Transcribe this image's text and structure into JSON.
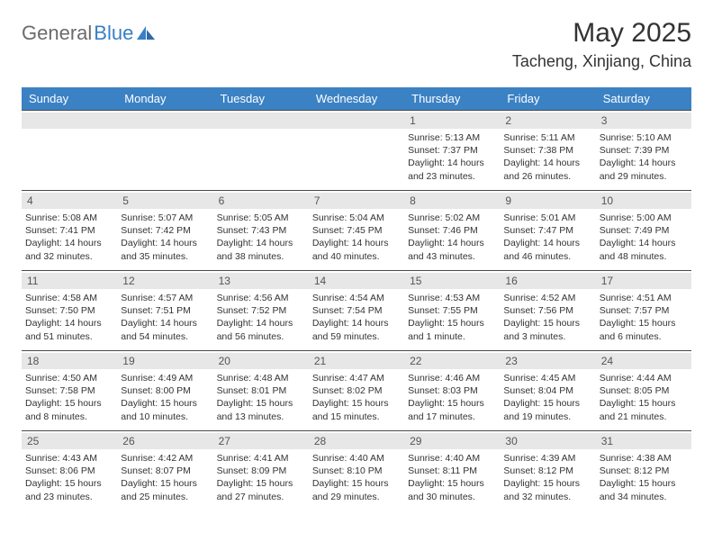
{
  "logo": {
    "word1": "General",
    "word2": "Blue"
  },
  "title": "May 2025",
  "location": "Tacheng, Xinjiang, China",
  "colors": {
    "header_bg": "#3b82c4",
    "header_fg": "#ffffff",
    "daynum_bg": "#e7e7e7",
    "rule": "#4a4a4a",
    "logo_gray": "#6b6b6b",
    "logo_blue": "#3b7fc4"
  },
  "day_headers": [
    "Sunday",
    "Monday",
    "Tuesday",
    "Wednesday",
    "Thursday",
    "Friday",
    "Saturday"
  ],
  "weeks": [
    [
      null,
      null,
      null,
      null,
      {
        "n": "1",
        "sr": "Sunrise: 5:13 AM",
        "ss": "Sunset: 7:37 PM",
        "dl1": "Daylight: 14 hours",
        "dl2": "and 23 minutes."
      },
      {
        "n": "2",
        "sr": "Sunrise: 5:11 AM",
        "ss": "Sunset: 7:38 PM",
        "dl1": "Daylight: 14 hours",
        "dl2": "and 26 minutes."
      },
      {
        "n": "3",
        "sr": "Sunrise: 5:10 AM",
        "ss": "Sunset: 7:39 PM",
        "dl1": "Daylight: 14 hours",
        "dl2": "and 29 minutes."
      }
    ],
    [
      {
        "n": "4",
        "sr": "Sunrise: 5:08 AM",
        "ss": "Sunset: 7:41 PM",
        "dl1": "Daylight: 14 hours",
        "dl2": "and 32 minutes."
      },
      {
        "n": "5",
        "sr": "Sunrise: 5:07 AM",
        "ss": "Sunset: 7:42 PM",
        "dl1": "Daylight: 14 hours",
        "dl2": "and 35 minutes."
      },
      {
        "n": "6",
        "sr": "Sunrise: 5:05 AM",
        "ss": "Sunset: 7:43 PM",
        "dl1": "Daylight: 14 hours",
        "dl2": "and 38 minutes."
      },
      {
        "n": "7",
        "sr": "Sunrise: 5:04 AM",
        "ss": "Sunset: 7:45 PM",
        "dl1": "Daylight: 14 hours",
        "dl2": "and 40 minutes."
      },
      {
        "n": "8",
        "sr": "Sunrise: 5:02 AM",
        "ss": "Sunset: 7:46 PM",
        "dl1": "Daylight: 14 hours",
        "dl2": "and 43 minutes."
      },
      {
        "n": "9",
        "sr": "Sunrise: 5:01 AM",
        "ss": "Sunset: 7:47 PM",
        "dl1": "Daylight: 14 hours",
        "dl2": "and 46 minutes."
      },
      {
        "n": "10",
        "sr": "Sunrise: 5:00 AM",
        "ss": "Sunset: 7:49 PM",
        "dl1": "Daylight: 14 hours",
        "dl2": "and 48 minutes."
      }
    ],
    [
      {
        "n": "11",
        "sr": "Sunrise: 4:58 AM",
        "ss": "Sunset: 7:50 PM",
        "dl1": "Daylight: 14 hours",
        "dl2": "and 51 minutes."
      },
      {
        "n": "12",
        "sr": "Sunrise: 4:57 AM",
        "ss": "Sunset: 7:51 PM",
        "dl1": "Daylight: 14 hours",
        "dl2": "and 54 minutes."
      },
      {
        "n": "13",
        "sr": "Sunrise: 4:56 AM",
        "ss": "Sunset: 7:52 PM",
        "dl1": "Daylight: 14 hours",
        "dl2": "and 56 minutes."
      },
      {
        "n": "14",
        "sr": "Sunrise: 4:54 AM",
        "ss": "Sunset: 7:54 PM",
        "dl1": "Daylight: 14 hours",
        "dl2": "and 59 minutes."
      },
      {
        "n": "15",
        "sr": "Sunrise: 4:53 AM",
        "ss": "Sunset: 7:55 PM",
        "dl1": "Daylight: 15 hours",
        "dl2": "and 1 minute."
      },
      {
        "n": "16",
        "sr": "Sunrise: 4:52 AM",
        "ss": "Sunset: 7:56 PM",
        "dl1": "Daylight: 15 hours",
        "dl2": "and 3 minutes."
      },
      {
        "n": "17",
        "sr": "Sunrise: 4:51 AM",
        "ss": "Sunset: 7:57 PM",
        "dl1": "Daylight: 15 hours",
        "dl2": "and 6 minutes."
      }
    ],
    [
      {
        "n": "18",
        "sr": "Sunrise: 4:50 AM",
        "ss": "Sunset: 7:58 PM",
        "dl1": "Daylight: 15 hours",
        "dl2": "and 8 minutes."
      },
      {
        "n": "19",
        "sr": "Sunrise: 4:49 AM",
        "ss": "Sunset: 8:00 PM",
        "dl1": "Daylight: 15 hours",
        "dl2": "and 10 minutes."
      },
      {
        "n": "20",
        "sr": "Sunrise: 4:48 AM",
        "ss": "Sunset: 8:01 PM",
        "dl1": "Daylight: 15 hours",
        "dl2": "and 13 minutes."
      },
      {
        "n": "21",
        "sr": "Sunrise: 4:47 AM",
        "ss": "Sunset: 8:02 PM",
        "dl1": "Daylight: 15 hours",
        "dl2": "and 15 minutes."
      },
      {
        "n": "22",
        "sr": "Sunrise: 4:46 AM",
        "ss": "Sunset: 8:03 PM",
        "dl1": "Daylight: 15 hours",
        "dl2": "and 17 minutes."
      },
      {
        "n": "23",
        "sr": "Sunrise: 4:45 AM",
        "ss": "Sunset: 8:04 PM",
        "dl1": "Daylight: 15 hours",
        "dl2": "and 19 minutes."
      },
      {
        "n": "24",
        "sr": "Sunrise: 4:44 AM",
        "ss": "Sunset: 8:05 PM",
        "dl1": "Daylight: 15 hours",
        "dl2": "and 21 minutes."
      }
    ],
    [
      {
        "n": "25",
        "sr": "Sunrise: 4:43 AM",
        "ss": "Sunset: 8:06 PM",
        "dl1": "Daylight: 15 hours",
        "dl2": "and 23 minutes."
      },
      {
        "n": "26",
        "sr": "Sunrise: 4:42 AM",
        "ss": "Sunset: 8:07 PM",
        "dl1": "Daylight: 15 hours",
        "dl2": "and 25 minutes."
      },
      {
        "n": "27",
        "sr": "Sunrise: 4:41 AM",
        "ss": "Sunset: 8:09 PM",
        "dl1": "Daylight: 15 hours",
        "dl2": "and 27 minutes."
      },
      {
        "n": "28",
        "sr": "Sunrise: 4:40 AM",
        "ss": "Sunset: 8:10 PM",
        "dl1": "Daylight: 15 hours",
        "dl2": "and 29 minutes."
      },
      {
        "n": "29",
        "sr": "Sunrise: 4:40 AM",
        "ss": "Sunset: 8:11 PM",
        "dl1": "Daylight: 15 hours",
        "dl2": "and 30 minutes."
      },
      {
        "n": "30",
        "sr": "Sunrise: 4:39 AM",
        "ss": "Sunset: 8:12 PM",
        "dl1": "Daylight: 15 hours",
        "dl2": "and 32 minutes."
      },
      {
        "n": "31",
        "sr": "Sunrise: 4:38 AM",
        "ss": "Sunset: 8:12 PM",
        "dl1": "Daylight: 15 hours",
        "dl2": "and 34 minutes."
      }
    ]
  ]
}
